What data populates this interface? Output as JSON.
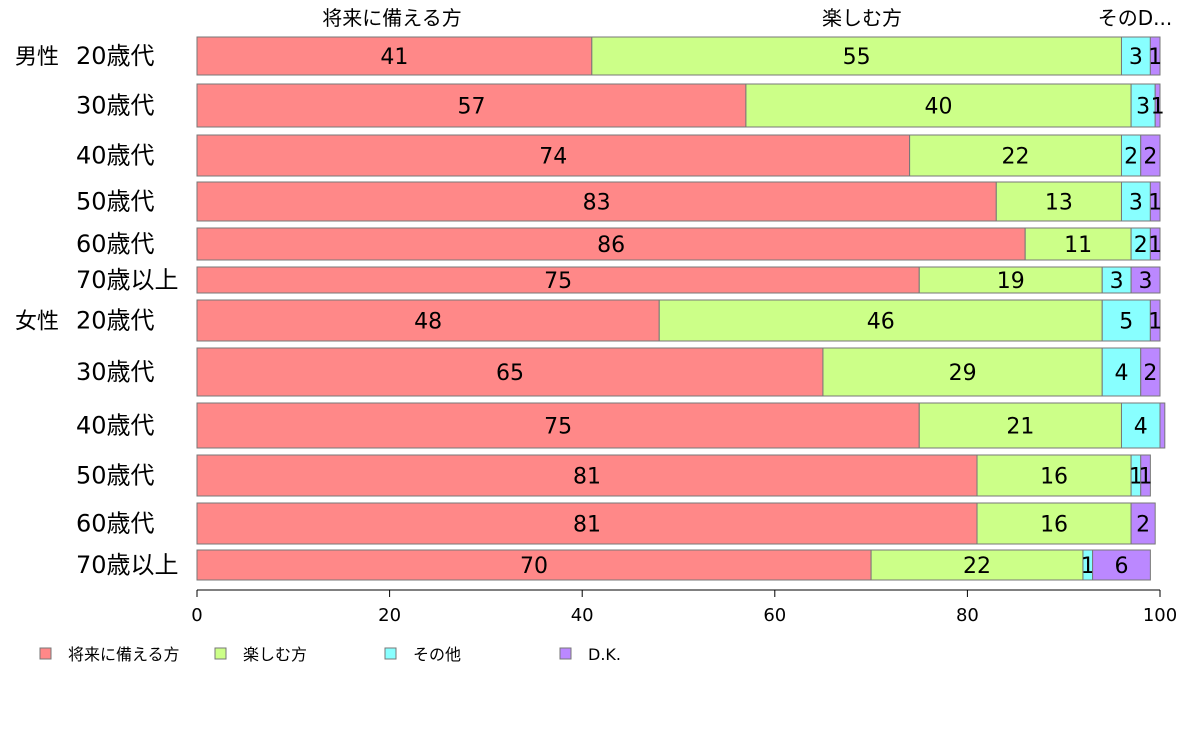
{
  "chart_data": {
    "type": "bar",
    "orientation": "horizontal",
    "stacked": true,
    "column_headers": [
      "将来に備える方",
      "楽しむ方",
      "そのD..."
    ],
    "groups": [
      {
        "label": "男性",
        "rows": [
          "20歳代",
          "30歳代",
          "40歳代",
          "50歳代",
          "60歳代",
          "70歳以上"
        ]
      },
      {
        "label": "女性",
        "rows": [
          "20歳代",
          "30歳代",
          "40歳代",
          "50歳代",
          "60歳代",
          "70歳以上"
        ]
      }
    ],
    "series": [
      {
        "name": "将来に備える方",
        "color": "#ff8888",
        "values": [
          41,
          57,
          74,
          83,
          86,
          75,
          48,
          65,
          75,
          81,
          81,
          70
        ],
        "labels": [
          "41",
          "57",
          "74",
          "83",
          "86",
          "75",
          "48",
          "65",
          "75",
          "81",
          "81",
          "70"
        ]
      },
      {
        "name": "楽しむ方",
        "color": "#ccff88",
        "values": [
          55,
          40,
          22,
          13,
          11,
          19,
          46,
          29,
          21,
          16,
          16,
          22
        ],
        "labels": [
          "55",
          "40",
          "22",
          "13",
          "11",
          "19",
          "46",
          "29",
          "21",
          "16",
          "16",
          "22"
        ]
      },
      {
        "name": "その他",
        "color": "#88ffff",
        "values": [
          3,
          2.5,
          2,
          3,
          2,
          3,
          5,
          4,
          4,
          1,
          0,
          1
        ],
        "labels": [
          "3",
          "3",
          "2",
          "3",
          "2",
          "3",
          "5",
          "4",
          "4",
          "1",
          "",
          "1"
        ]
      },
      {
        "name": "D.K.",
        "color": "#bb88ff",
        "values": [
          1,
          0.5,
          2,
          1,
          1,
          3,
          1,
          2,
          0.5,
          1,
          2.5,
          6
        ],
        "labels": [
          "1",
          "1",
          "2",
          "1",
          "1",
          "3",
          "1",
          "2",
          "",
          "1",
          "2",
          "6"
        ]
      }
    ],
    "xlim": [
      0,
      100
    ],
    "xticks": [
      "0",
      "20",
      "40",
      "60",
      "80",
      "100"
    ],
    "legend_position": "bottom"
  }
}
